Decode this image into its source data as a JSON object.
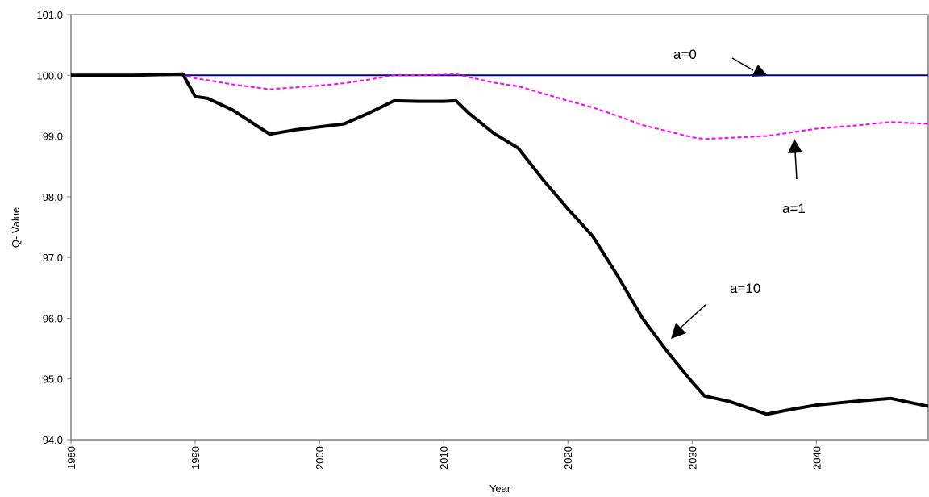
{
  "chart_data": {
    "type": "line",
    "y_label": "Q- Value",
    "x_label": "Year",
    "xlim": [
      1980,
      2049
    ],
    "ylim": [
      94,
      101
    ],
    "xticks": [
      1980,
      1990,
      2000,
      2010,
      2020,
      2030,
      2040
    ],
    "yticks": [
      {
        "value": 94,
        "label": "94.0"
      },
      {
        "value": 95,
        "label": "95.0"
      },
      {
        "value": 96,
        "label": "96.0"
      },
      {
        "value": 97,
        "label": "97.0"
      },
      {
        "value": 98,
        "label": "98.0"
      },
      {
        "value": 99,
        "label": "99.0"
      },
      {
        "value": 100,
        "label": "100.0"
      },
      {
        "value": 101,
        "label": "101.0"
      }
    ],
    "grid": false,
    "x": [
      1980,
      1985,
      1989,
      1990,
      1991,
      1993,
      1996,
      1998,
      2000,
      2002,
      2004,
      2006,
      2008,
      2010,
      2011,
      2012,
      2014,
      2016,
      2018,
      2020,
      2022,
      2024,
      2026,
      2028,
      2030,
      2031,
      2033,
      2036,
      2038,
      2040,
      2043,
      2046,
      2049
    ],
    "series": [
      {
        "name": "a=0",
        "color": "#000080",
        "dashed": false,
        "width": 2,
        "values": [
          100,
          100,
          100,
          100,
          100,
          100,
          100,
          100,
          100,
          100,
          100,
          100,
          100,
          100,
          100,
          100,
          100,
          100,
          100,
          100,
          100,
          100,
          100,
          100,
          100,
          100,
          100,
          100,
          100,
          100,
          100,
          100,
          100
        ]
      },
      {
        "name": "a=1",
        "color": "#ff00ff",
        "dashed": true,
        "width": 2,
        "values": [
          100,
          100,
          100,
          99.95,
          99.92,
          99.85,
          99.77,
          99.8,
          99.83,
          99.87,
          99.93,
          100,
          100,
          100.01,
          100.02,
          99.97,
          99.88,
          99.82,
          99.7,
          99.58,
          99.47,
          99.33,
          99.18,
          99.08,
          98.98,
          98.95,
          98.97,
          99,
          99.06,
          99.12,
          99.17,
          99.23,
          99.2
        ]
      },
      {
        "name": "a=10",
        "color": "#000000",
        "dashed": false,
        "width": 4,
        "values": [
          100,
          100,
          100.02,
          99.65,
          99.62,
          99.43,
          99.03,
          99.1,
          99.15,
          99.2,
          99.38,
          99.58,
          99.57,
          99.57,
          99.58,
          99.38,
          99.05,
          98.8,
          98.28,
          97.8,
          97.35,
          96.7,
          96,
          95.45,
          94.95,
          94.72,
          94.63,
          94.42,
          94.5,
          94.57,
          94.63,
          94.68,
          94.55
        ]
      }
    ]
  }
}
